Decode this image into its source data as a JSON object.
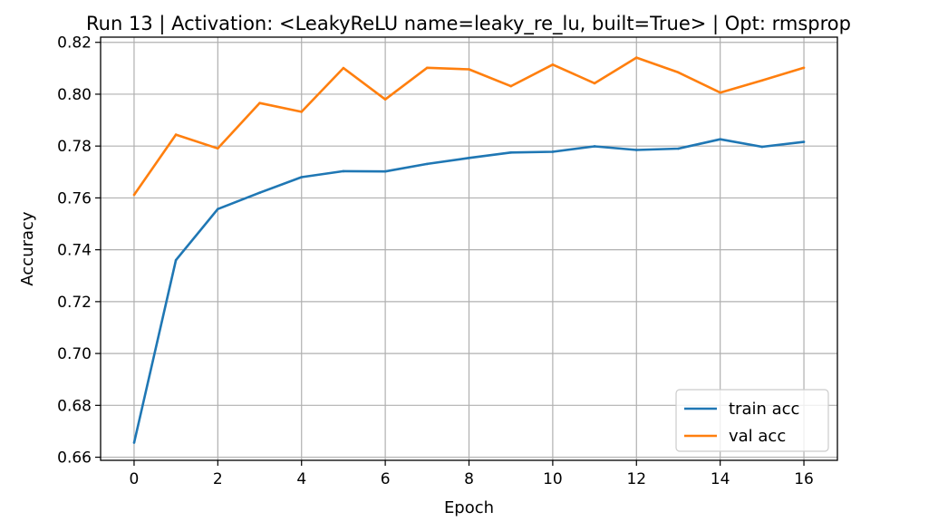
{
  "chart_data": {
    "type": "line",
    "title": "Run 13 | Activation: <LeakyReLU name=leaky_re_lu, built=True> | Opt: rmsprop",
    "xlabel": "Epoch",
    "ylabel": "Accuracy",
    "xlim": [
      -0.8,
      16.8
    ],
    "ylim": [
      0.6588,
      0.822
    ],
    "xticks": [
      0,
      2,
      4,
      6,
      8,
      10,
      12,
      14,
      16
    ],
    "yticks": [
      0.66,
      0.68,
      0.7,
      0.72,
      0.74,
      0.76,
      0.78,
      0.8,
      0.82
    ],
    "ytick_labels": [
      "0.66",
      "0.68",
      "0.70",
      "0.72",
      "0.74",
      "0.76",
      "0.78",
      "0.80",
      "0.82"
    ],
    "grid": true,
    "legend_position": "lower-right",
    "x": [
      0,
      1,
      2,
      3,
      4,
      5,
      6,
      7,
      8,
      9,
      10,
      11,
      12,
      13,
      14,
      15,
      16
    ],
    "series": [
      {
        "name": "train acc",
        "color": "#1f77b4",
        "values": [
          0.6656,
          0.736,
          0.7557,
          0.762,
          0.768,
          0.7703,
          0.7702,
          0.7731,
          0.7754,
          0.7775,
          0.7778,
          0.7799,
          0.7785,
          0.779,
          0.7826,
          0.7797,
          0.7816
        ]
      },
      {
        "name": "val acc",
        "color": "#ff7f0e",
        "values": [
          0.7612,
          0.7844,
          0.7791,
          0.7966,
          0.7932,
          0.8101,
          0.798,
          0.8102,
          0.8096,
          0.8031,
          0.8114,
          0.8042,
          0.8141,
          0.8084,
          0.8006,
          0.8053,
          0.8102
        ]
      }
    ]
  }
}
